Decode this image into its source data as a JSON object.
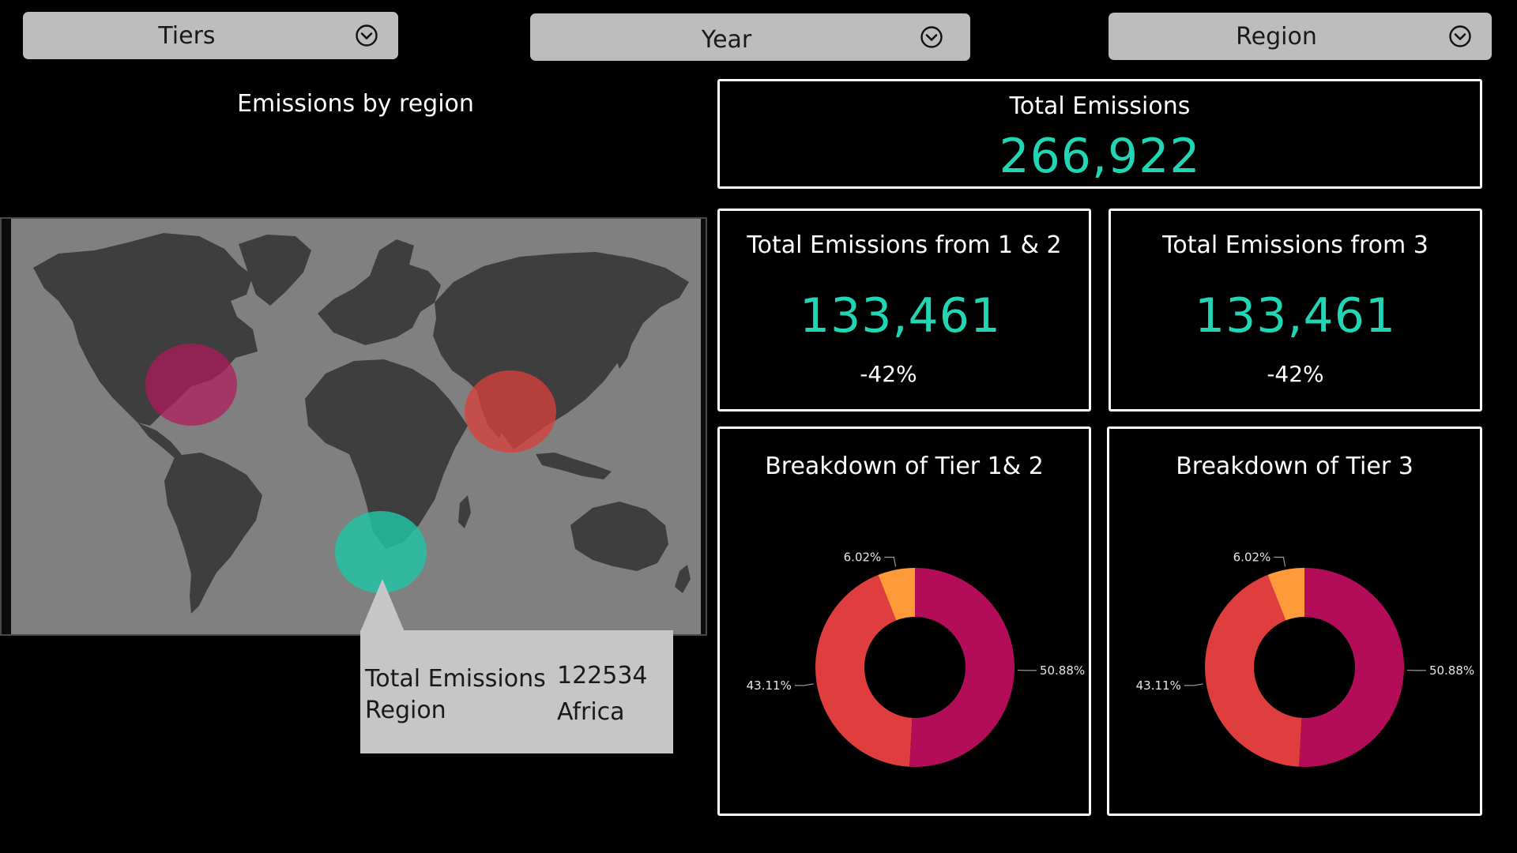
{
  "slicers": {
    "tiers": "Tiers",
    "year": "Year",
    "region": "Region"
  },
  "map": {
    "title": "Emissions by region",
    "bubbles": [
      {
        "region": "North America",
        "color": "#b0195c"
      },
      {
        "region": "Asia",
        "color": "#d6403e"
      },
      {
        "region": "Africa",
        "color": "#20c4a6"
      }
    ],
    "tooltip": {
      "key1": "Total Emissions",
      "val1": "122534",
      "key2": "Region",
      "val2": "Africa"
    }
  },
  "kpis": {
    "total": {
      "title": "Total Emissions",
      "value": "266,922"
    },
    "tier12": {
      "title": "Total Emissions from 1 & 2",
      "value": "133,461",
      "delta": "-42%"
    },
    "tier3": {
      "title": "Total Emissions from 3",
      "value": "133,461",
      "delta": "-42%"
    }
  },
  "colors": {
    "accent": "#21d6b4",
    "slice_magenta": "#b30d5a",
    "slice_red": "#e03e3e",
    "slice_orange": "#ff9a3a"
  },
  "chart_data": [
    {
      "type": "pie",
      "title": "Breakdown of Tier 1& 2",
      "donut": true,
      "labels": [
        "50.88%",
        "43.11%",
        "6.02%"
      ],
      "values": [
        50.88,
        43.11,
        6.02
      ],
      "colors": [
        "#b30d5a",
        "#e03e3e",
        "#ff9a3a"
      ]
    },
    {
      "type": "pie",
      "title": "Breakdown of Tier 3",
      "donut": true,
      "labels": [
        "50.88%",
        "43.11%",
        "6.02%"
      ],
      "values": [
        50.88,
        43.11,
        6.02
      ],
      "colors": [
        "#b30d5a",
        "#e03e3e",
        "#ff9a3a"
      ]
    }
  ]
}
